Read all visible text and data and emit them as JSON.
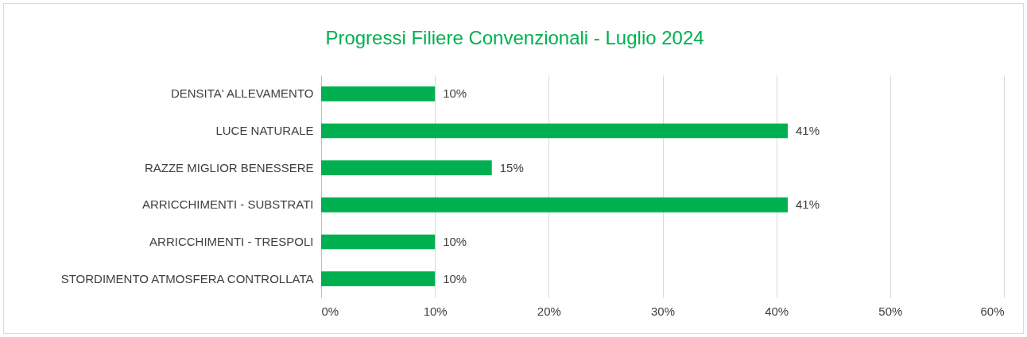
{
  "chart_data": {
    "type": "bar",
    "orientation": "horizontal",
    "title": "Progressi Filiere Convenzionali - Luglio 2024",
    "categories": [
      "DENSITA' ALLEVAMENTO",
      "LUCE NATURALE",
      "RAZZE MIGLIOR BENESSERE",
      "ARRICCHIMENTI - SUBSTRATI",
      "ARRICCHIMENTI - TRESPOLI",
      "STORDIMENTO ATMOSFERA CONTROLLATA"
    ],
    "values": [
      10,
      41,
      15,
      41,
      10,
      10
    ],
    "value_labels": [
      "10%",
      "41%",
      "15%",
      "41%",
      "10%",
      "10%"
    ],
    "color": "#00b050",
    "xlim": [
      0,
      60
    ],
    "xticks": [
      {
        "value": 0,
        "label": "0%"
      },
      {
        "value": 10,
        "label": "10%"
      },
      {
        "value": 20,
        "label": "20%"
      },
      {
        "value": 30,
        "label": "30%"
      },
      {
        "value": 40,
        "label": "40%"
      },
      {
        "value": 50,
        "label": "50%"
      },
      {
        "value": 60,
        "label": "60%"
      }
    ],
    "grid": "x"
  }
}
